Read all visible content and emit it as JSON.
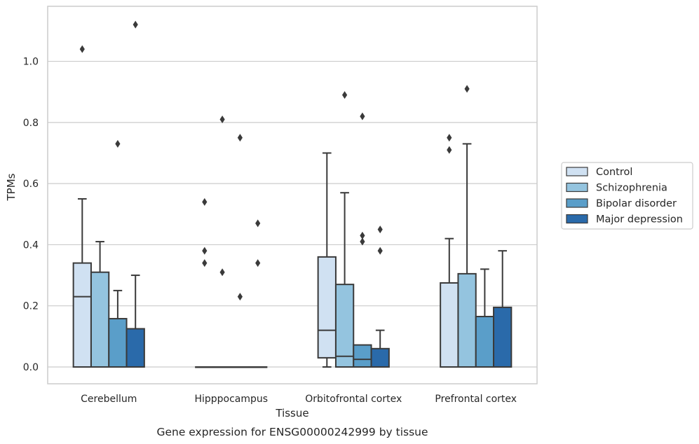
{
  "chart_data": {
    "type": "box",
    "title": "",
    "caption": "Gene expression for ENSG00000242999 by tissue",
    "xlabel": "Tissue",
    "ylabel": "TPMs",
    "ylim": [
      -0.055,
      1.18
    ],
    "yticks": [
      0.0,
      0.2,
      0.4,
      0.6,
      0.8,
      1.0
    ],
    "ytick_labels": [
      "0.0",
      "0.2",
      "0.4",
      "0.6",
      "0.8",
      "1.0"
    ],
    "grid": "horizontal",
    "legend_position": "right, outside plot",
    "categories": [
      "Cerebellum",
      "Hipppocampus",
      "Orbitofrontal cortex",
      "Prefrontal cortex"
    ],
    "series": [
      {
        "name": "Control",
        "color": "#d0e1f2",
        "boxes": [
          {
            "min": 0.0,
            "q1": 0.0,
            "median": 0.23,
            "q3": 0.34,
            "max": 0.55,
            "outliers": [
              1.04
            ]
          },
          {
            "min": 0.0,
            "q1": 0.0,
            "median": 0.0,
            "q3": 0.0,
            "max": 0.0,
            "outliers": [
              0.34,
              0.38,
              0.54
            ]
          },
          {
            "min": 0.0,
            "q1": 0.03,
            "median": 0.12,
            "q3": 0.36,
            "max": 0.7,
            "outliers": []
          },
          {
            "min": 0.0,
            "q1": 0.0,
            "median": 0.0,
            "q3": 0.275,
            "max": 0.42,
            "outliers": [
              0.71,
              0.75
            ]
          }
        ]
      },
      {
        "name": "Schizophrenia",
        "color": "#94c4df",
        "boxes": [
          {
            "min": 0.0,
            "q1": 0.0,
            "median": 0.0,
            "q3": 0.31,
            "max": 0.41,
            "outliers": []
          },
          {
            "min": 0.0,
            "q1": 0.0,
            "median": 0.0,
            "q3": 0.0,
            "max": 0.0,
            "outliers": [
              0.31,
              0.81
            ]
          },
          {
            "min": 0.0,
            "q1": 0.0,
            "median": 0.035,
            "q3": 0.27,
            "max": 0.57,
            "outliers": [
              0.89
            ]
          },
          {
            "min": 0.0,
            "q1": 0.0,
            "median": 0.0,
            "q3": 0.305,
            "max": 0.73,
            "outliers": [
              0.91
            ]
          }
        ]
      },
      {
        "name": "Bipolar disorder",
        "color": "#5a9ec9",
        "boxes": [
          {
            "min": 0.0,
            "q1": 0.0,
            "median": 0.0,
            "q3": 0.158,
            "max": 0.25,
            "outliers": [
              0.73
            ]
          },
          {
            "min": 0.0,
            "q1": 0.0,
            "median": 0.0,
            "q3": 0.0,
            "max": 0.0,
            "outliers": [
              0.23,
              0.75
            ]
          },
          {
            "min": 0.0,
            "q1": 0.0,
            "median": 0.025,
            "q3": 0.072,
            "max": 0.072,
            "outliers": [
              0.41,
              0.43,
              0.82
            ]
          },
          {
            "min": 0.0,
            "q1": 0.0,
            "median": 0.0,
            "q3": 0.165,
            "max": 0.32,
            "outliers": []
          }
        ]
      },
      {
        "name": "Major depression",
        "color": "#2a6aaa",
        "boxes": [
          {
            "min": 0.0,
            "q1": 0.0,
            "median": 0.0,
            "q3": 0.125,
            "max": 0.3,
            "outliers": [
              1.12
            ]
          },
          {
            "min": 0.0,
            "q1": 0.0,
            "median": 0.0,
            "q3": 0.0,
            "max": 0.0,
            "outliers": [
              0.34,
              0.47
            ]
          },
          {
            "min": 0.0,
            "q1": 0.0,
            "median": 0.0,
            "q3": 0.06,
            "max": 0.12,
            "outliers": [
              0.38,
              0.45
            ]
          },
          {
            "min": 0.0,
            "q1": 0.0,
            "median": 0.0,
            "q3": 0.195,
            "max": 0.38,
            "outliers": []
          }
        ]
      }
    ]
  }
}
